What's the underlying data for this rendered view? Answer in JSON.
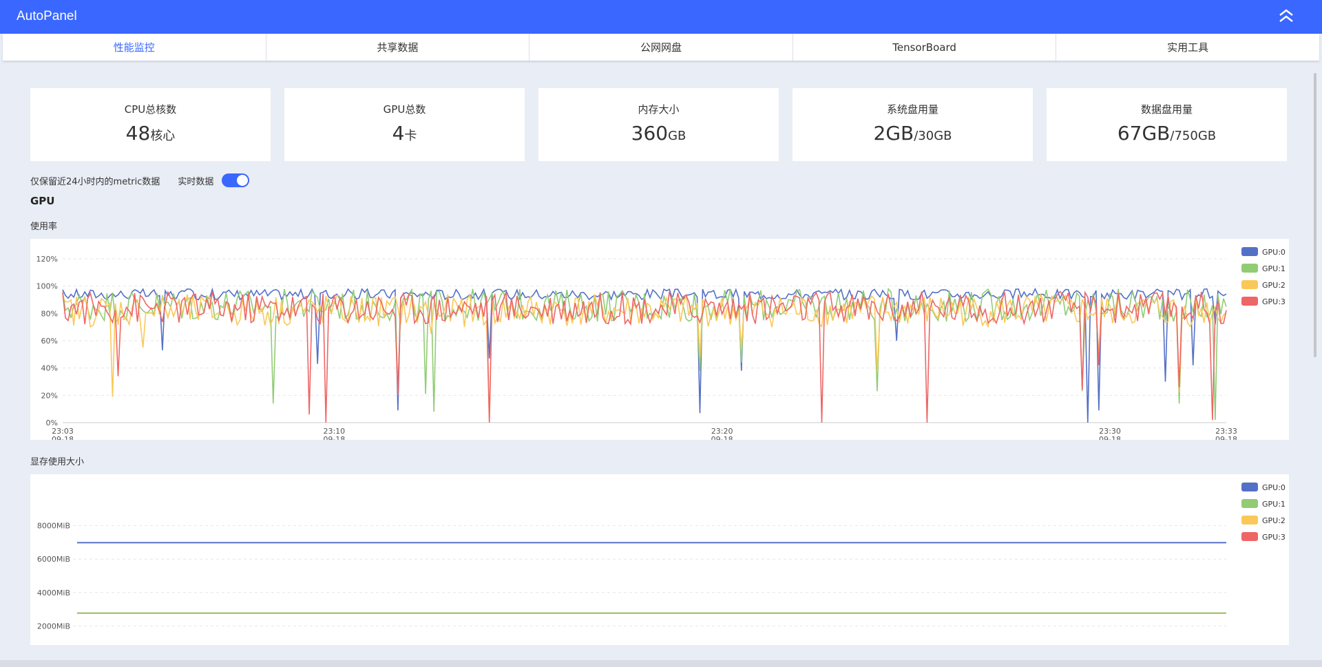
{
  "app": {
    "title": "AutoPanel"
  },
  "tabs": [
    {
      "label": "性能监控",
      "active": true
    },
    {
      "label": "共享数据",
      "active": false
    },
    {
      "label": "公网网盘",
      "active": false
    },
    {
      "label": "TensorBoard",
      "active": false
    },
    {
      "label": "实用工具",
      "active": false
    }
  ],
  "stats": [
    {
      "label": "CPU总核数",
      "value": "48",
      "unit": "核心"
    },
    {
      "label": "GPU总数",
      "value": "4",
      "unit": "卡"
    },
    {
      "label": "内存大小",
      "value": "360",
      "unit": "GB"
    },
    {
      "label": "系统盘用量",
      "value": "2GB",
      "unit": "/30GB"
    },
    {
      "label": "数据盘用量",
      "value": "67GB",
      "unit": "/750GB"
    }
  ],
  "options": {
    "retention_note": "仅保留近24小时内的metric数据",
    "realtime_label": "实时数据",
    "realtime_on": true
  },
  "gpu_section": {
    "title": "GPU",
    "usage_title": "使用率",
    "memory_title": "显存使用大小"
  },
  "colors": {
    "accent": "#3967ff",
    "gpu0": "#5470c6",
    "gpu1": "#91cc75",
    "gpu2": "#fac858",
    "gpu3": "#ee6666"
  },
  "chart_data": [
    {
      "type": "line",
      "title": "使用率",
      "x": [
        "23:03\n09-18",
        "23:10\n09-18",
        "23:20\n09-18",
        "23:30\n09-18",
        "23:33\n09-18"
      ],
      "x_range": [
        "23:03",
        "23:33"
      ],
      "ylim": [
        0,
        120
      ],
      "yticks": [
        "0%",
        "20%",
        "40%",
        "60%",
        "80%",
        "100%",
        "120%"
      ],
      "legend": "right",
      "series": [
        {
          "name": "GPU:0",
          "color": "#5470c6",
          "typical": 96,
          "dips": [
            [
              3.0,
              53
            ],
            [
              7.7,
              43
            ],
            [
              8.0,
              92
            ],
            [
              10.1,
              9
            ],
            [
              12.8,
              47
            ],
            [
              19.2,
              7
            ],
            [
              20.4,
              38
            ],
            [
              25.1,
              60
            ],
            [
              30.8,
              0
            ],
            [
              31.2,
              9
            ],
            [
              33.2,
              30
            ],
            [
              34.0,
              42
            ],
            [
              34.7,
              72
            ]
          ]
        },
        {
          "name": "GPU:1",
          "color": "#91cc75",
          "typical": 86,
          "dips": [
            [
              6.3,
              14
            ],
            [
              10.1,
              25
            ],
            [
              10.9,
              21
            ],
            [
              11.2,
              8
            ],
            [
              19.2,
              38
            ],
            [
              20.4,
              44
            ],
            [
              24.5,
              23
            ],
            [
              30.7,
              23
            ],
            [
              31.2,
              44
            ],
            [
              33.6,
              14
            ],
            [
              34.7,
              2
            ]
          ]
        },
        {
          "name": "GPU:2",
          "color": "#fac858",
          "typical": 82,
          "dips": [
            [
              1.5,
              19
            ],
            [
              2.4,
              55
            ],
            [
              11.1,
              65
            ],
            [
              12.8,
              1
            ],
            [
              19.2,
              48
            ],
            [
              20.4,
              55
            ],
            [
              24.5,
              37
            ],
            [
              31.2,
              50
            ],
            [
              33.6,
              22
            ]
          ]
        },
        {
          "name": "GPU:3",
          "color": "#ee6666",
          "typical": 84,
          "dips": [
            [
              1.7,
              34
            ],
            [
              7.4,
              6
            ],
            [
              7.9,
              0
            ],
            [
              10.1,
              20
            ],
            [
              12.8,
              0
            ],
            [
              22.8,
              0
            ],
            [
              26.0,
              0
            ],
            [
              30.7,
              24
            ],
            [
              31.2,
              42
            ],
            [
              33.6,
              26
            ],
            [
              34.6,
              2
            ]
          ]
        }
      ]
    },
    {
      "type": "line",
      "title": "显存使用大小",
      "ylim": [
        0,
        9000
      ],
      "yticks": [
        "2000MiB",
        "4000MiB",
        "6000MiB",
        "8000MiB"
      ],
      "legend": "right",
      "series": [
        {
          "name": "GPU:0",
          "color": "#5470c6",
          "values": [
            6980,
            6980
          ]
        },
        {
          "name": "GPU:1",
          "color": "#91cc75",
          "values": [
            2770,
            2770
          ]
        },
        {
          "name": "GPU:2",
          "color": "#fac858",
          "values": [
            2770,
            2770
          ]
        },
        {
          "name": "GPU:3",
          "color": "#ee6666",
          "values": [
            2770,
            2770
          ]
        }
      ]
    }
  ]
}
